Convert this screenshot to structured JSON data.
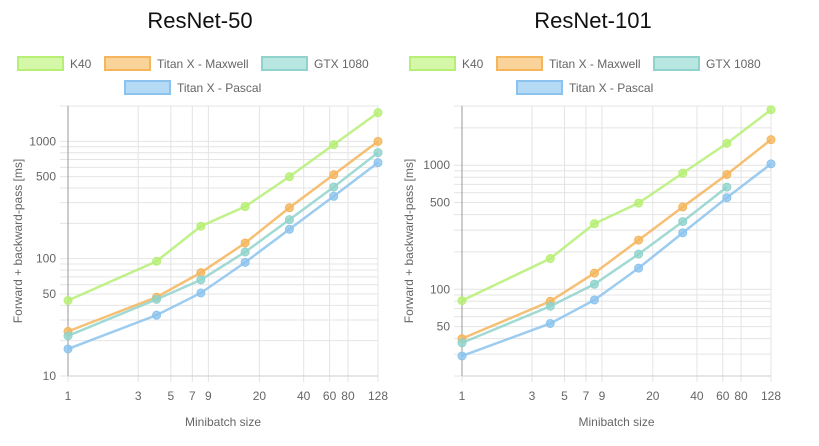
{
  "colors": {
    "K40": {
      "fill": "#d4f8a8",
      "stroke": "#b6ef74"
    },
    "Titan X - Maxwell": {
      "fill": "#fad39a",
      "stroke": "#f4b55c"
    },
    "GTX 1080": {
      "fill": "#b8e6e0",
      "stroke": "#90d3cc"
    },
    "Titan X - Pascal": {
      "fill": "#b4daf6",
      "stroke": "#8cc3ee"
    }
  },
  "chart_data": [
    {
      "type": "line",
      "title": "ResNet-50",
      "xlabel": "Minibatch size",
      "ylabel": "Forward + backward-pass [ms]",
      "xscale": "log",
      "yscale": "log",
      "xlim": [
        1,
        128
      ],
      "ylim": [
        10,
        2000
      ],
      "xticks": [
        1,
        3,
        5,
        7,
        9,
        20,
        40,
        60,
        80,
        128
      ],
      "yticks": [
        10,
        50,
        100,
        500,
        1000
      ],
      "grid": true,
      "legend": "top",
      "x": [
        1,
        4,
        8,
        16,
        32,
        64,
        128
      ],
      "series": [
        {
          "name": "K40",
          "values": [
            44,
            95,
            189,
            278,
            500,
            937,
            1755
          ]
        },
        {
          "name": "Titan X - Maxwell",
          "values": [
            24,
            47,
            76,
            136,
            272,
            520,
            1000
          ]
        },
        {
          "name": "GTX 1080",
          "values": [
            22,
            45,
            66,
            114,
            215,
            408,
            802
          ]
        },
        {
          "name": "Titan X - Pascal",
          "values": [
            17,
            33,
            51,
            93,
            178,
            340,
            658
          ]
        }
      ]
    },
    {
      "type": "line",
      "title": "ResNet-101",
      "xlabel": "Minibatch size",
      "ylabel": "Forward + backward-pass [ms]",
      "xscale": "log",
      "yscale": "log",
      "xlim": [
        1,
        128
      ],
      "ylim": [
        20,
        3000
      ],
      "xticks": [
        1,
        3,
        5,
        7,
        9,
        20,
        40,
        60,
        80,
        128
      ],
      "yticks": [
        50,
        100,
        500,
        1000
      ],
      "grid": true,
      "legend": "top",
      "x": [
        1,
        4,
        8,
        16,
        32,
        64,
        128
      ],
      "series": [
        {
          "name": "K40",
          "values": [
            81,
            177,
            338,
            495,
            863,
            1500,
            2800
          ]
        },
        {
          "name": "Titan X - Maxwell",
          "values": [
            40,
            80,
            135,
            249,
            460,
            841,
            1607
          ]
        },
        {
          "name": "GTX 1080",
          "values": [
            37,
            73,
            110,
            192,
            351,
            666,
            null
          ]
        },
        {
          "name": "Titan X - Pascal",
          "values": [
            29,
            53,
            82,
            148,
            285,
            547,
            1025
          ]
        }
      ]
    }
  ]
}
